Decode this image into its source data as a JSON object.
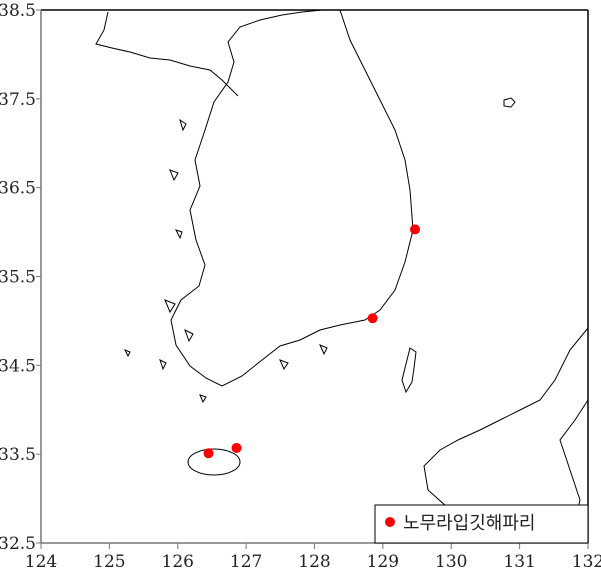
{
  "chart_data": {
    "type": "scatter",
    "map_region": "Korean Peninsula and surrounding seas",
    "xlim": [
      124,
      132
    ],
    "ylim": [
      32.5,
      38.5
    ],
    "x_ticks": [
      "124",
      "125",
      "126",
      "127",
      "128",
      "129",
      "130",
      "131",
      "132"
    ],
    "y_ticks": [
      "32.5",
      "33.5",
      "34.5",
      "35.5",
      "36.5",
      "37.5",
      "38.5"
    ],
    "grid": false,
    "legend_position": "bottom-right",
    "series": [
      {
        "name": "노무라입깃해파리",
        "color": "#ff0000",
        "points": [
          {
            "lon": 129.47,
            "lat": 36.03
          },
          {
            "lon": 128.85,
            "lat": 35.03
          },
          {
            "lon": 126.45,
            "lat": 33.51
          },
          {
            "lon": 126.86,
            "lat": 33.57
          }
        ]
      }
    ]
  }
}
